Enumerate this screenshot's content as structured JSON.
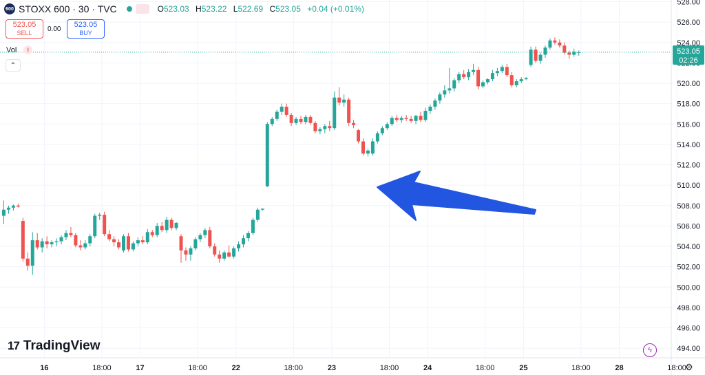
{
  "header": {
    "badge": "600",
    "symbol_title": "STOXX 600 · 30 · TVC",
    "wave_icon": "≈",
    "ohlc": {
      "o_label": "O",
      "o_value": "523.03",
      "h_label": "H",
      "h_value": "523.22",
      "l_label": "L",
      "l_value": "522.69",
      "c_label": "C",
      "c_value": "523.05",
      "change": "+0.04 (+0.01%)"
    }
  },
  "trade": {
    "sell_price": "523.05",
    "sell_label": "SELL",
    "spread": "0.00",
    "buy_price": "523.05",
    "buy_label": "BUY"
  },
  "volume": {
    "label": "Vol",
    "warning": "!"
  },
  "collapse_icon": "⌃",
  "brand": {
    "mark": "17",
    "name": "TradingView"
  },
  "flash_icon": "ϟ",
  "settings_icon": "⚙",
  "price_badge": {
    "price": "523.05",
    "countdown": "02:26"
  },
  "colors": {
    "up": "#26a69a",
    "down": "#ef5350",
    "arrow": "#2356e0",
    "grid": "#f0f3fa"
  },
  "chart_data": {
    "type": "candlestick",
    "title": "STOXX 600 · 30 · TVC",
    "ylim": [
      493,
      528
    ],
    "y_ticks": [
      "494.00",
      "496.00",
      "498.00",
      "500.00",
      "502.00",
      "504.00",
      "506.00",
      "508.00",
      "510.00",
      "512.00",
      "514.00",
      "516.00",
      "518.00",
      "520.00",
      "522.00",
      "524.00",
      "526.00",
      "528.00"
    ],
    "x_ticks": [
      "16",
      "18:00",
      "17",
      "18:00",
      "22",
      "18:00",
      "23",
      "18:00",
      "24",
      "18:00",
      "25",
      "18:00",
      "28",
      "18:00"
    ],
    "x_tick_bold": [
      true,
      false,
      true,
      false,
      true,
      false,
      true,
      false,
      true,
      false,
      true,
      false,
      true,
      false
    ],
    "x_tick_index": [
      4,
      16,
      24,
      36,
      44,
      56,
      64,
      76,
      84,
      96,
      104,
      116,
      124,
      136
    ],
    "current_price": 523.05,
    "candles": [
      {
        "o": 507.0,
        "h": 508.5,
        "l": 506.2,
        "c": 507.6
      },
      {
        "o": 507.6,
        "h": 508.0,
        "l": 507.2,
        "c": 507.8
      },
      {
        "o": 507.8,
        "h": 508.1,
        "l": 507.5,
        "c": 508.0
      },
      {
        "o": 508.0,
        "h": 508.2,
        "l": 507.8,
        "c": 507.9
      },
      {
        "o": 506.5,
        "h": 506.8,
        "l": 502.5,
        "c": 502.8
      },
      {
        "o": 502.8,
        "h": 503.4,
        "l": 501.6,
        "c": 502.1
      },
      {
        "o": 502.1,
        "h": 505.4,
        "l": 501.2,
        "c": 504.6
      },
      {
        "o": 504.6,
        "h": 505.3,
        "l": 503.7,
        "c": 503.9
      },
      {
        "o": 503.9,
        "h": 504.8,
        "l": 503.4,
        "c": 504.5
      },
      {
        "o": 504.5,
        "h": 505.0,
        "l": 503.8,
        "c": 504.2
      },
      {
        "o": 504.2,
        "h": 504.6,
        "l": 503.9,
        "c": 504.4
      },
      {
        "o": 504.4,
        "h": 504.8,
        "l": 504.0,
        "c": 504.5
      },
      {
        "o": 504.5,
        "h": 505.1,
        "l": 504.2,
        "c": 504.9
      },
      {
        "o": 504.9,
        "h": 505.6,
        "l": 504.6,
        "c": 505.3
      },
      {
        "o": 505.3,
        "h": 505.9,
        "l": 504.9,
        "c": 505.1
      },
      {
        "o": 505.1,
        "h": 505.3,
        "l": 503.9,
        "c": 504.1
      },
      {
        "o": 504.1,
        "h": 504.6,
        "l": 503.6,
        "c": 503.9
      },
      {
        "o": 503.9,
        "h": 504.6,
        "l": 503.7,
        "c": 504.3
      },
      {
        "o": 504.3,
        "h": 505.2,
        "l": 504.0,
        "c": 505.0
      },
      {
        "o": 505.0,
        "h": 507.2,
        "l": 504.8,
        "c": 507.0
      },
      {
        "o": 507.0,
        "h": 507.3,
        "l": 506.6,
        "c": 507.1
      },
      {
        "o": 507.1,
        "h": 507.4,
        "l": 505.0,
        "c": 505.2
      },
      {
        "o": 505.2,
        "h": 505.6,
        "l": 504.5,
        "c": 504.7
      },
      {
        "o": 504.7,
        "h": 505.0,
        "l": 504.0,
        "c": 504.4
      },
      {
        "o": 504.4,
        "h": 504.7,
        "l": 503.7,
        "c": 503.9
      },
      {
        "o": 503.6,
        "h": 505.2,
        "l": 503.4,
        "c": 505.0
      },
      {
        "o": 505.0,
        "h": 505.3,
        "l": 503.5,
        "c": 503.7
      },
      {
        "o": 503.7,
        "h": 504.5,
        "l": 503.5,
        "c": 504.3
      },
      {
        "o": 504.3,
        "h": 504.9,
        "l": 504.0,
        "c": 504.6
      },
      {
        "o": 504.6,
        "h": 505.0,
        "l": 504.2,
        "c": 504.4
      },
      {
        "o": 504.4,
        "h": 505.7,
        "l": 504.2,
        "c": 505.4
      },
      {
        "o": 505.4,
        "h": 505.6,
        "l": 504.9,
        "c": 505.1
      },
      {
        "o": 505.1,
        "h": 506.3,
        "l": 504.9,
        "c": 506.0
      },
      {
        "o": 506.0,
        "h": 506.4,
        "l": 505.4,
        "c": 505.6
      },
      {
        "o": 505.6,
        "h": 506.9,
        "l": 505.3,
        "c": 506.6
      },
      {
        "o": 506.6,
        "h": 506.8,
        "l": 505.6,
        "c": 505.8
      },
      {
        "o": 505.8,
        "h": 506.4,
        "l": 505.6,
        "c": 506.3
      },
      {
        "o": 505.0,
        "h": 505.2,
        "l": 502.4,
        "c": 503.6
      },
      {
        "o": 503.6,
        "h": 503.9,
        "l": 502.6,
        "c": 503.2
      },
      {
        "o": 503.2,
        "h": 504.0,
        "l": 502.6,
        "c": 503.8
      },
      {
        "o": 503.8,
        "h": 504.9,
        "l": 503.6,
        "c": 504.7
      },
      {
        "o": 504.7,
        "h": 505.3,
        "l": 504.4,
        "c": 505.1
      },
      {
        "o": 505.1,
        "h": 505.8,
        "l": 504.8,
        "c": 505.6
      },
      {
        "o": 505.6,
        "h": 505.9,
        "l": 503.8,
        "c": 504.0
      },
      {
        "o": 504.0,
        "h": 504.3,
        "l": 503.0,
        "c": 503.2
      },
      {
        "o": 503.2,
        "h": 503.6,
        "l": 502.4,
        "c": 502.8
      },
      {
        "o": 502.8,
        "h": 503.6,
        "l": 502.6,
        "c": 503.4
      },
      {
        "o": 503.4,
        "h": 504.1,
        "l": 502.9,
        "c": 503.0
      },
      {
        "o": 503.0,
        "h": 504.0,
        "l": 502.8,
        "c": 503.8
      },
      {
        "o": 503.8,
        "h": 504.5,
        "l": 503.5,
        "c": 504.2
      },
      {
        "o": 504.2,
        "h": 505.1,
        "l": 503.9,
        "c": 504.8
      },
      {
        "o": 504.8,
        "h": 505.5,
        "l": 504.5,
        "c": 505.3
      },
      {
        "o": 505.3,
        "h": 506.8,
        "l": 505.1,
        "c": 506.6
      },
      {
        "o": 506.6,
        "h": 507.8,
        "l": 506.4,
        "c": 507.6
      },
      {
        "o": 507.6,
        "h": 507.7,
        "l": 507.5,
        "c": 507.7
      },
      {
        "o": 509.9,
        "h": 516.2,
        "l": 509.8,
        "c": 516.0
      },
      {
        "o": 516.0,
        "h": 516.7,
        "l": 515.8,
        "c": 516.5
      },
      {
        "o": 516.5,
        "h": 517.4,
        "l": 516.3,
        "c": 517.2
      },
      {
        "o": 517.2,
        "h": 518.0,
        "l": 516.9,
        "c": 517.7
      },
      {
        "o": 517.7,
        "h": 518.0,
        "l": 516.7,
        "c": 516.9
      },
      {
        "o": 516.9,
        "h": 517.1,
        "l": 515.8,
        "c": 516.1
      },
      {
        "o": 516.1,
        "h": 516.7,
        "l": 515.9,
        "c": 516.5
      },
      {
        "o": 516.5,
        "h": 516.8,
        "l": 516.0,
        "c": 516.2
      },
      {
        "o": 516.2,
        "h": 516.9,
        "l": 516.0,
        "c": 516.7
      },
      {
        "o": 516.7,
        "h": 516.9,
        "l": 515.9,
        "c": 516.1
      },
      {
        "o": 516.1,
        "h": 516.3,
        "l": 515.1,
        "c": 515.3
      },
      {
        "o": 515.3,
        "h": 515.7,
        "l": 515.0,
        "c": 515.5
      },
      {
        "o": 515.5,
        "h": 516.0,
        "l": 515.1,
        "c": 515.8
      },
      {
        "o": 515.8,
        "h": 516.3,
        "l": 515.3,
        "c": 515.6
      },
      {
        "o": 515.6,
        "h": 519.2,
        "l": 515.4,
        "c": 518.6
      },
      {
        "o": 518.6,
        "h": 519.6,
        "l": 517.8,
        "c": 518.1
      },
      {
        "o": 518.1,
        "h": 518.9,
        "l": 517.7,
        "c": 518.4
      },
      {
        "o": 518.4,
        "h": 518.6,
        "l": 515.8,
        "c": 516.1
      },
      {
        "o": 516.1,
        "h": 516.4,
        "l": 515.6,
        "c": 515.9
      },
      {
        "o": 515.4,
        "h": 515.5,
        "l": 514.1,
        "c": 514.3
      },
      {
        "o": 514.3,
        "h": 514.6,
        "l": 512.9,
        "c": 513.1
      },
      {
        "o": 513.1,
        "h": 513.6,
        "l": 512.8,
        "c": 513.4
      },
      {
        "o": 513.1,
        "h": 514.6,
        "l": 512.9,
        "c": 514.3
      },
      {
        "o": 514.3,
        "h": 515.3,
        "l": 514.1,
        "c": 515.1
      },
      {
        "o": 515.1,
        "h": 515.8,
        "l": 514.9,
        "c": 515.6
      },
      {
        "o": 515.6,
        "h": 516.2,
        "l": 515.4,
        "c": 516.0
      },
      {
        "o": 516.0,
        "h": 516.8,
        "l": 515.8,
        "c": 516.6
      },
      {
        "o": 516.6,
        "h": 516.9,
        "l": 516.2,
        "c": 516.4
      },
      {
        "o": 516.4,
        "h": 516.8,
        "l": 516.1,
        "c": 516.6
      },
      {
        "o": 516.6,
        "h": 516.9,
        "l": 516.3,
        "c": 516.5
      },
      {
        "o": 516.5,
        "h": 516.8,
        "l": 516.1,
        "c": 516.3
      },
      {
        "o": 516.3,
        "h": 516.9,
        "l": 516.0,
        "c": 516.8
      },
      {
        "o": 516.8,
        "h": 517.2,
        "l": 516.2,
        "c": 516.4
      },
      {
        "o": 516.4,
        "h": 517.6,
        "l": 516.2,
        "c": 517.3
      },
      {
        "o": 517.3,
        "h": 517.9,
        "l": 517.0,
        "c": 517.7
      },
      {
        "o": 517.7,
        "h": 518.5,
        "l": 517.4,
        "c": 518.3
      },
      {
        "o": 518.3,
        "h": 519.1,
        "l": 518.0,
        "c": 518.9
      },
      {
        "o": 518.9,
        "h": 519.8,
        "l": 518.6,
        "c": 519.3
      },
      {
        "o": 519.3,
        "h": 521.5,
        "l": 519.0,
        "c": 519.5
      },
      {
        "o": 519.5,
        "h": 520.5,
        "l": 519.2,
        "c": 520.3
      },
      {
        "o": 520.3,
        "h": 521.1,
        "l": 520.0,
        "c": 520.9
      },
      {
        "o": 520.9,
        "h": 521.3,
        "l": 520.4,
        "c": 520.6
      },
      {
        "o": 520.6,
        "h": 521.4,
        "l": 520.3,
        "c": 521.1
      },
      {
        "o": 521.1,
        "h": 521.9,
        "l": 520.8,
        "c": 521.3
      },
      {
        "o": 521.3,
        "h": 521.6,
        "l": 519.4,
        "c": 519.7
      },
      {
        "o": 519.7,
        "h": 520.3,
        "l": 519.5,
        "c": 520.1
      },
      {
        "o": 520.1,
        "h": 520.5,
        "l": 519.9,
        "c": 520.4
      },
      {
        "o": 520.4,
        "h": 521.3,
        "l": 520.2,
        "c": 521.0
      },
      {
        "o": 521.0,
        "h": 521.5,
        "l": 520.7,
        "c": 521.2
      },
      {
        "o": 521.2,
        "h": 521.8,
        "l": 521.0,
        "c": 521.6
      },
      {
        "o": 521.6,
        "h": 521.9,
        "l": 520.6,
        "c": 520.8
      },
      {
        "o": 520.8,
        "h": 521.1,
        "l": 519.6,
        "c": 519.8
      },
      {
        "o": 519.8,
        "h": 520.4,
        "l": 519.6,
        "c": 520.2
      },
      {
        "o": 520.2,
        "h": 520.6,
        "l": 520.0,
        "c": 520.4
      },
      {
        "o": 520.4,
        "h": 520.6,
        "l": 520.3,
        "c": 520.5
      },
      {
        "o": 521.8,
        "h": 523.6,
        "l": 521.6,
        "c": 523.3
      },
      {
        "o": 523.3,
        "h": 523.6,
        "l": 522.0,
        "c": 522.2
      },
      {
        "o": 522.2,
        "h": 523.0,
        "l": 521.9,
        "c": 522.8
      },
      {
        "o": 522.8,
        "h": 523.7,
        "l": 522.5,
        "c": 523.5
      },
      {
        "o": 523.5,
        "h": 524.4,
        "l": 523.3,
        "c": 524.2
      },
      {
        "o": 524.2,
        "h": 524.5,
        "l": 523.8,
        "c": 524.0
      },
      {
        "o": 524.0,
        "h": 524.3,
        "l": 523.5,
        "c": 523.7
      },
      {
        "o": 523.7,
        "h": 524.0,
        "l": 522.8,
        "c": 523.0
      },
      {
        "o": 523.0,
        "h": 523.2,
        "l": 522.4,
        "c": 522.8
      },
      {
        "o": 522.8,
        "h": 523.4,
        "l": 522.6,
        "c": 523.1
      },
      {
        "o": 523.03,
        "h": 523.22,
        "l": 522.69,
        "c": 523.05
      }
    ]
  }
}
